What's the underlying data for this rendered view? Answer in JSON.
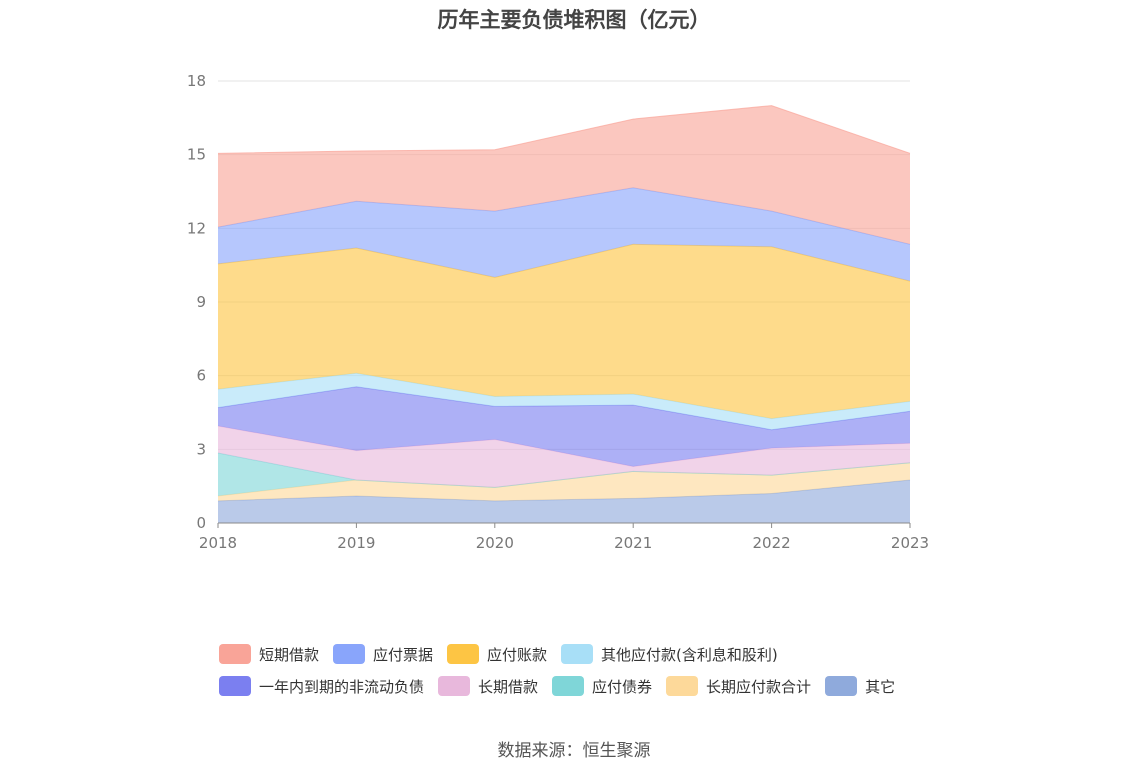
{
  "chart_data": {
    "type": "area",
    "stacked": true,
    "title": "历年主要负债堆积图（亿元）",
    "x": [
      "2018",
      "2019",
      "2020",
      "2021",
      "2022",
      "2023"
    ],
    "ylim": [
      0,
      18
    ],
    "yticks": [
      0,
      3,
      6,
      9,
      12,
      15,
      18
    ],
    "grid": true,
    "legend_position": "bottom",
    "series": [
      {
        "name": "其它",
        "color": "#8faadc",
        "values": [
          0.9,
          1.1,
          0.9,
          1.0,
          1.2,
          1.75
        ]
      },
      {
        "name": "长期应付款合计",
        "color": "#fdd99a",
        "values": [
          0.2,
          0.65,
          0.55,
          1.1,
          0.75,
          0.7
        ]
      },
      {
        "name": "应付债券",
        "color": "#7fd6d8",
        "values": [
          1.75,
          0.0,
          0.0,
          0.0,
          0.0,
          0.0
        ]
      },
      {
        "name": "长期借款",
        "color": "#e8b8dc",
        "values": [
          1.1,
          1.2,
          1.95,
          0.2,
          1.1,
          0.8
        ]
      },
      {
        "name": "一年内到期的非流动负债",
        "color": "#7b7ff0",
        "values": [
          0.75,
          2.6,
          1.35,
          2.5,
          0.75,
          1.3
        ]
      },
      {
        "name": "其他应付款(含利息和股利)",
        "color": "#a8dff7",
        "values": [
          0.75,
          0.55,
          0.4,
          0.45,
          0.45,
          0.4
        ]
      },
      {
        "name": "应付账款",
        "color": "#fdc544",
        "values": [
          5.1,
          5.1,
          4.85,
          6.1,
          7.0,
          4.9
        ]
      },
      {
        "name": "应付票据",
        "color": "#89a5fb",
        "values": [
          1.5,
          1.9,
          2.7,
          2.3,
          1.45,
          1.5
        ]
      },
      {
        "name": "短期借款",
        "color": "#f9a498",
        "values": [
          3.0,
          2.05,
          2.5,
          2.8,
          4.3,
          3.7
        ]
      }
    ]
  },
  "legend_order": [
    [
      "短期借款",
      "应付票据",
      "应付账款",
      "其他应付款(含利息和股利)"
    ],
    [
      "一年内到期的非流动负债",
      "长期借款",
      "应付债券",
      "长期应付款合计",
      "其它"
    ]
  ],
  "source": "数据来源：恒生聚源"
}
